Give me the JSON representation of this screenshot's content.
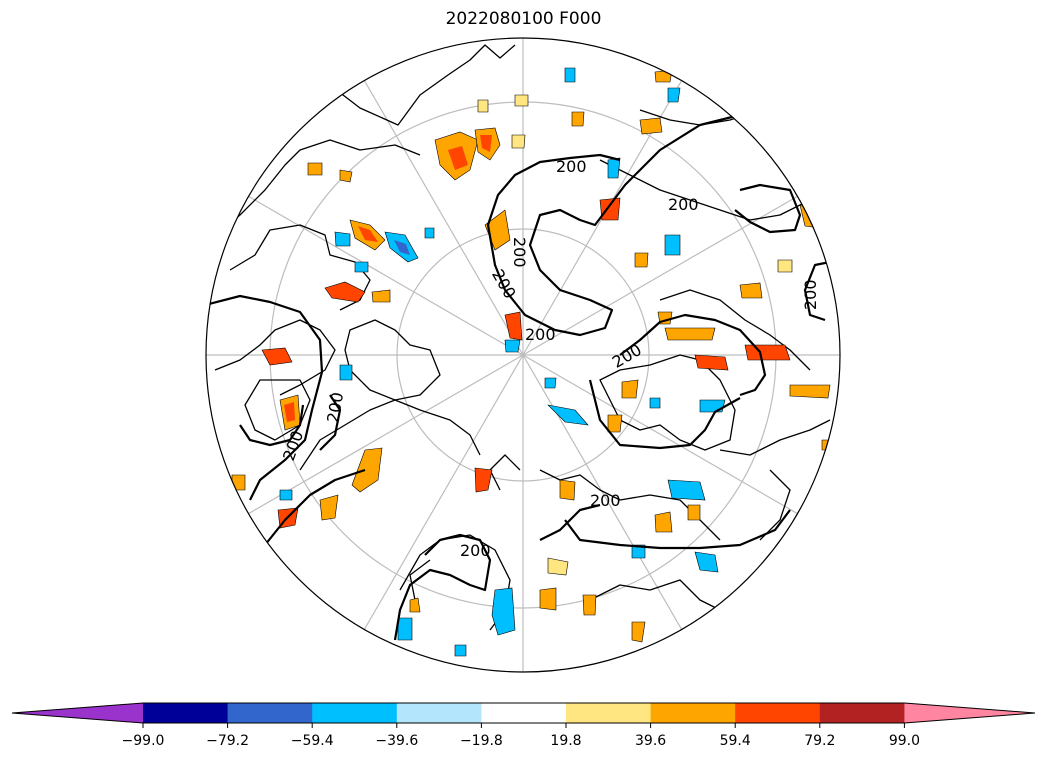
{
  "title": "2022080100 F000",
  "map": {
    "projection": "north polar stereographic",
    "contour_level_label": "200",
    "contour_labels": [
      "200",
      "200",
      "200",
      "200",
      "200",
      "200",
      "200",
      "200",
      "200",
      "200",
      "200"
    ]
  },
  "colorbar": {
    "extend": "both",
    "ticks": [
      "−99.0",
      "−79.2",
      "−59.4",
      "−39.6",
      "−19.8",
      "19.8",
      "39.6",
      "59.4",
      "79.2",
      "99.0"
    ],
    "bins": [
      {
        "range": "below -99.0",
        "color": "#9933cc"
      },
      {
        "range": "-99.0 to -79.2",
        "color": "#000099"
      },
      {
        "range": "-79.2 to -59.4",
        "color": "#3366cc"
      },
      {
        "range": "-59.4 to -39.6",
        "color": "#00bfff"
      },
      {
        "range": "-39.6 to -19.8",
        "color": "#b3e5fc"
      },
      {
        "range": "-19.8 to 19.8",
        "color": "#ffffff"
      },
      {
        "range": "19.8 to 39.6",
        "color": "#ffe680"
      },
      {
        "range": "39.6 to 59.4",
        "color": "#ffa500"
      },
      {
        "range": "59.4 to 79.2",
        "color": "#ff4500"
      },
      {
        "range": "79.2 to 99.0",
        "color": "#b22222"
      },
      {
        "range": "above 99.0",
        "color": "#ff85a1"
      }
    ]
  }
}
